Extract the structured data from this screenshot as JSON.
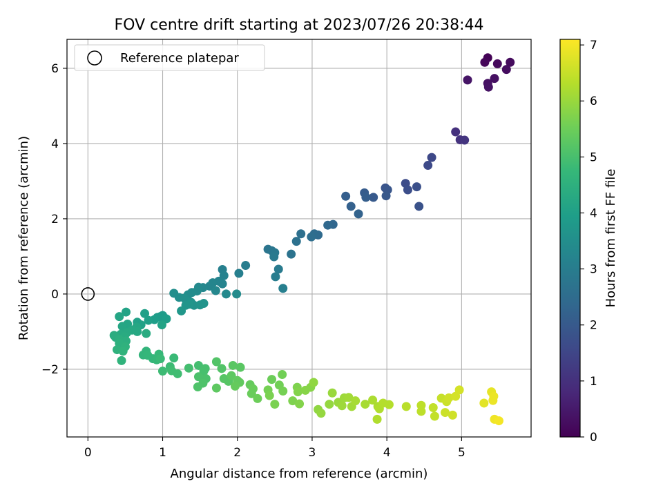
{
  "chart_data": {
    "type": "scatter",
    "title": "FOV centre drift starting at 2023/07/26 20:38:44",
    "xlabel": "Angular distance from reference (arcmin)",
    "ylabel": "Rotation from reference (arcmin)",
    "xlim": [
      -0.28,
      5.93
    ],
    "ylim": [
      -3.8,
      6.77
    ],
    "xticks": [
      0,
      1,
      2,
      3,
      4,
      5
    ],
    "xtick_labels": [
      "0",
      "1",
      "2",
      "3",
      "4",
      "5"
    ],
    "yticks": [
      -2,
      0,
      2,
      4,
      6
    ],
    "ytick_labels": [
      "−2",
      "0",
      "2",
      "4",
      "6"
    ],
    "grid": true,
    "legend": {
      "placement": "top-left",
      "entries": [
        "Reference platepar"
      ]
    },
    "reference_point": {
      "x": 0,
      "y": 0
    },
    "colorbar": {
      "label": "Hours from first FF file",
      "colormap": "viridis",
      "range": [
        0,
        7.1
      ],
      "ticks": [
        0,
        1,
        2,
        3,
        4,
        5,
        6,
        7
      ],
      "tick_labels": [
        "0",
        "1",
        "2",
        "3",
        "4",
        "5",
        "6",
        "7"
      ]
    },
    "colormap_stops": [
      "#440154",
      "#482878",
      "#3e4989",
      "#31688e",
      "#26828e",
      "#1f9e89",
      "#35b779",
      "#6ece58",
      "#b5de2b",
      "#fde725"
    ],
    "points": [
      [
        5.35,
        6.28,
        0.05
      ],
      [
        5.31,
        6.16,
        0.1
      ],
      [
        5.48,
        6.12,
        0.15
      ],
      [
        5.65,
        6.16,
        0.2
      ],
      [
        5.6,
        5.97,
        0.25
      ],
      [
        5.44,
        5.73,
        0.3
      ],
      [
        5.35,
        5.6,
        0.33
      ],
      [
        5.36,
        5.5,
        0.36
      ],
      [
        5.08,
        5.69,
        0.4
      ],
      [
        4.92,
        4.31,
        1.0
      ],
      [
        4.98,
        4.1,
        1.05
      ],
      [
        5.04,
        4.09,
        1.1
      ],
      [
        4.6,
        3.63,
        1.55
      ],
      [
        4.55,
        3.42,
        1.6
      ],
      [
        4.25,
        2.94,
        1.65
      ],
      [
        4.28,
        2.77,
        1.7
      ],
      [
        4.4,
        2.85,
        1.75
      ],
      [
        4.43,
        2.33,
        1.8
      ],
      [
        3.98,
        2.82,
        1.85
      ],
      [
        4.01,
        2.77,
        1.9
      ],
      [
        3.99,
        2.61,
        1.95
      ],
      [
        3.82,
        2.57,
        2.0
      ],
      [
        3.7,
        2.69,
        2.05
      ],
      [
        3.72,
        2.57,
        2.1
      ],
      [
        3.45,
        2.6,
        2.15
      ],
      [
        3.52,
        2.33,
        2.2
      ],
      [
        3.62,
        2.13,
        2.25
      ],
      [
        3.28,
        1.85,
        2.35
      ],
      [
        3.21,
        1.83,
        2.4
      ],
      [
        3.08,
        1.57,
        2.45
      ],
      [
        3.03,
        1.6,
        2.5
      ],
      [
        2.99,
        1.52,
        2.55
      ],
      [
        2.85,
        1.6,
        2.6
      ],
      [
        2.79,
        1.4,
        2.65
      ],
      [
        2.72,
        1.06,
        2.7
      ],
      [
        2.41,
        1.19,
        2.75
      ],
      [
        2.46,
        1.15,
        2.8
      ],
      [
        2.5,
        1.1,
        2.85
      ],
      [
        2.49,
        0.99,
        2.9
      ],
      [
        2.55,
        0.66,
        2.95
      ],
      [
        2.51,
        0.46,
        3.0
      ],
      [
        2.61,
        0.15,
        3.05
      ],
      [
        2.11,
        0.76,
        3.0
      ],
      [
        2.02,
        0.55,
        3.05
      ],
      [
        1.8,
        0.65,
        3.1
      ],
      [
        1.82,
        0.49,
        3.15
      ],
      [
        1.75,
        0.34,
        3.2
      ],
      [
        1.8,
        0.27,
        3.2
      ],
      [
        1.67,
        0.3,
        3.25
      ],
      [
        1.63,
        0.21,
        3.25
      ],
      [
        1.71,
        0.09,
        3.3
      ],
      [
        1.54,
        0.17,
        3.3
      ],
      [
        1.48,
        0.18,
        3.35
      ],
      [
        1.85,
        0.0,
        3.35
      ],
      [
        1.99,
        0.0,
        3.4
      ],
      [
        1.46,
        0.08,
        3.4
      ],
      [
        1.39,
        0.04,
        3.45
      ],
      [
        1.34,
        -0.02,
        3.45
      ],
      [
        1.15,
        0.02,
        3.5
      ],
      [
        1.22,
        -0.09,
        3.5
      ],
      [
        1.29,
        -0.11,
        3.55
      ],
      [
        1.32,
        -0.18,
        3.55
      ],
      [
        1.38,
        -0.22,
        3.6
      ],
      [
        1.42,
        -0.3,
        3.6
      ],
      [
        1.5,
        -0.29,
        3.65
      ],
      [
        1.55,
        -0.25,
        3.65
      ],
      [
        1.36,
        -0.27,
        3.7
      ],
      [
        1.31,
        -0.3,
        3.7
      ],
      [
        1.25,
        -0.45,
        3.75
      ],
      [
        1.0,
        -0.57,
        3.85
      ],
      [
        0.97,
        -0.6,
        3.9
      ],
      [
        0.93,
        -0.62,
        3.9
      ],
      [
        1.05,
        -0.66,
        3.95
      ],
      [
        0.89,
        -0.68,
        3.95
      ],
      [
        0.81,
        -0.7,
        4.0
      ],
      [
        0.76,
        -0.52,
        4.0
      ],
      [
        0.66,
        -0.75,
        4.05
      ],
      [
        0.71,
        -0.82,
        4.05
      ],
      [
        0.99,
        -0.82,
        4.1
      ],
      [
        0.51,
        -0.48,
        4.1
      ],
      [
        0.42,
        -0.6,
        4.15
      ],
      [
        0.53,
        -0.8,
        4.15
      ],
      [
        0.46,
        -0.86,
        4.2
      ],
      [
        0.65,
        -0.88,
        4.2
      ],
      [
        0.59,
        -0.96,
        4.25
      ],
      [
        0.66,
        -1.0,
        4.25
      ],
      [
        0.52,
        -1.03,
        4.3
      ],
      [
        0.44,
        -1.07,
        4.3
      ],
      [
        0.78,
        -1.05,
        4.35
      ],
      [
        0.49,
        -1.13,
        4.35
      ],
      [
        0.35,
        -1.1,
        4.4
      ],
      [
        0.37,
        -1.15,
        4.4
      ],
      [
        0.42,
        -1.21,
        4.45
      ],
      [
        0.51,
        -1.25,
        4.45
      ],
      [
        0.42,
        -1.31,
        4.5
      ],
      [
        0.43,
        -1.38,
        4.5
      ],
      [
        0.5,
        -1.4,
        4.55
      ],
      [
        0.39,
        -1.48,
        4.55
      ],
      [
        0.47,
        -1.52,
        4.6
      ],
      [
        0.45,
        -1.77,
        4.6
      ],
      [
        0.74,
        -1.62,
        4.65
      ],
      [
        0.78,
        -1.52,
        4.65
      ],
      [
        0.8,
        -1.63,
        4.7
      ],
      [
        0.87,
        -1.72,
        4.7
      ],
      [
        0.92,
        -1.75,
        4.75
      ],
      [
        0.95,
        -1.6,
        4.75
      ],
      [
        0.97,
        -1.72,
        4.8
      ],
      [
        1.15,
        -1.7,
        4.8
      ],
      [
        1.0,
        -2.05,
        4.85
      ],
      [
        1.1,
        -1.93,
        4.85
      ],
      [
        1.12,
        -2.04,
        4.9
      ],
      [
        1.2,
        -2.12,
        4.9
      ],
      [
        1.35,
        -1.97,
        4.95
      ],
      [
        1.48,
        -1.9,
        4.95
      ],
      [
        1.57,
        -1.98,
        5.0
      ],
      [
        1.55,
        -2.05,
        5.0
      ],
      [
        1.48,
        -2.2,
        5.05
      ],
      [
        1.58,
        -2.25,
        5.05
      ],
      [
        1.47,
        -2.47,
        5.1
      ],
      [
        1.54,
        -2.37,
        5.1
      ],
      [
        1.72,
        -1.8,
        5.15
      ],
      [
        1.79,
        -1.98,
        5.15
      ],
      [
        1.82,
        -2.25,
        5.2
      ],
      [
        1.88,
        -2.32,
        5.2
      ],
      [
        1.94,
        -1.9,
        5.25
      ],
      [
        2.04,
        -1.95,
        5.25
      ],
      [
        1.92,
        -2.17,
        5.3
      ],
      [
        1.72,
        -2.5,
        5.3
      ],
      [
        2.0,
        -2.3,
        5.35
      ],
      [
        2.03,
        -2.35,
        5.35
      ],
      [
        1.97,
        -2.45,
        5.4
      ],
      [
        2.17,
        -2.41,
        5.4
      ],
      [
        2.21,
        -2.52,
        5.45
      ],
      [
        2.19,
        -2.65,
        5.45
      ],
      [
        2.27,
        -2.78,
        5.5
      ],
      [
        2.46,
        -2.27,
        5.5
      ],
      [
        2.6,
        -2.14,
        5.55
      ],
      [
        2.56,
        -2.42,
        5.55
      ],
      [
        2.41,
        -2.55,
        5.6
      ],
      [
        2.61,
        -2.58,
        5.6
      ],
      [
        2.43,
        -2.7,
        5.65
      ],
      [
        2.5,
        -2.93,
        5.65
      ],
      [
        2.74,
        -2.84,
        5.7
      ],
      [
        2.8,
        -2.48,
        5.7
      ],
      [
        2.81,
        -2.6,
        5.75
      ],
      [
        2.83,
        -2.92,
        5.75
      ],
      [
        2.91,
        -2.56,
        5.8
      ],
      [
        2.98,
        -2.48,
        5.8
      ],
      [
        3.02,
        -2.35,
        5.9
      ],
      [
        3.08,
        -3.07,
        5.9
      ],
      [
        3.12,
        -3.17,
        5.95
      ],
      [
        3.23,
        -2.93,
        5.95
      ],
      [
        3.27,
        -2.63,
        6.0
      ],
      [
        3.35,
        -2.88,
        6.0
      ],
      [
        3.43,
        -2.76,
        6.05
      ],
      [
        3.4,
        -2.97,
        6.05
      ],
      [
        3.49,
        -2.75,
        6.1
      ],
      [
        3.53,
        -2.99,
        6.1
      ],
      [
        3.58,
        -2.84,
        6.15
      ],
      [
        3.71,
        -2.93,
        6.15
      ],
      [
        3.81,
        -2.82,
        6.2
      ],
      [
        3.88,
        -2.99,
        6.2
      ],
      [
        3.87,
        -3.33,
        6.25
      ],
      [
        3.9,
        -3.05,
        6.25
      ],
      [
        3.95,
        -2.9,
        6.3
      ],
      [
        4.03,
        -2.94,
        6.3
      ],
      [
        4.26,
        -2.99,
        6.35
      ],
      [
        4.46,
        -2.96,
        6.4
      ],
      [
        4.46,
        -3.12,
        6.4
      ],
      [
        4.62,
        -3.02,
        6.45
      ],
      [
        4.64,
        -3.25,
        6.45
      ],
      [
        4.73,
        -2.77,
        6.5
      ],
      [
        4.78,
        -3.15,
        6.55
      ],
      [
        4.8,
        -2.86,
        6.55
      ],
      [
        4.83,
        -2.76,
        6.6
      ],
      [
        4.88,
        -3.22,
        6.6
      ],
      [
        4.92,
        -2.72,
        6.65
      ],
      [
        4.97,
        -2.55,
        6.65
      ],
      [
        5.3,
        -2.9,
        6.8
      ],
      [
        5.4,
        -2.6,
        6.85
      ],
      [
        5.43,
        -2.72,
        6.9
      ],
      [
        5.42,
        -2.83,
        6.9
      ],
      [
        5.44,
        -3.33,
        6.95
      ],
      [
        5.5,
        -3.37,
        7.0
      ]
    ]
  }
}
